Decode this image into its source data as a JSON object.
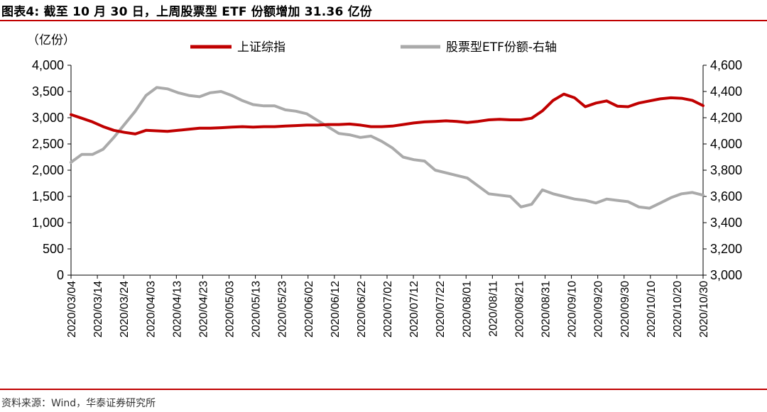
{
  "header": {
    "title": "图表4:  截至 10 月 30 日，上周股票型 ETF 份额增加 31.36 亿份"
  },
  "footer": {
    "source": "资料来源：Wind，华泰证券研究所"
  },
  "colors": {
    "accent_red": "#c00000",
    "series_red": "#c00000",
    "series_gray": "#aaaaaa",
    "axis": "#000000"
  },
  "chart_data": {
    "type": "line",
    "title": "截至 10 月 30 日，上周股票型 ETF 份额增加 31.36 亿份",
    "left_unit_label": "（亿份）",
    "legend_position": "top",
    "grid": false,
    "y_left": {
      "min": 0,
      "max": 4000,
      "step": 500,
      "ticks": [
        "0",
        "500",
        "1,000",
        "1,500",
        "2,000",
        "2,500",
        "3,000",
        "3,500",
        "4,000"
      ]
    },
    "y_right": {
      "min": 3000,
      "max": 4600,
      "step": 200,
      "ticks": [
        "3,000",
        "3,200",
        "3,400",
        "3,600",
        "3,800",
        "4,000",
        "4,200",
        "4,400",
        "4,600"
      ]
    },
    "x_labels": [
      "2020/03/04",
      "2020/03/14",
      "2020/03/24",
      "2020/04/03",
      "2020/04/13",
      "2020/04/23",
      "2020/05/03",
      "2020/05/13",
      "2020/05/23",
      "2020/06/02",
      "2020/06/12",
      "2020/06/22",
      "2020/07/02",
      "2020/07/12",
      "2020/07/22",
      "2020/08/01",
      "2020/08/11",
      "2020/08/21",
      "2020/08/31",
      "2020/09/10",
      "2020/09/20",
      "2020/09/30",
      "2020/10/10",
      "2020/10/20",
      "2020/10/30"
    ],
    "series": [
      {
        "name": "上证综指",
        "axis": "left",
        "color": "#c00000",
        "values": [
          3060,
          2990,
          2920,
          2830,
          2760,
          2720,
          2690,
          2760,
          2750,
          2740,
          2760,
          2780,
          2800,
          2800,
          2810,
          2820,
          2830,
          2820,
          2830,
          2830,
          2840,
          2850,
          2860,
          2860,
          2870,
          2870,
          2880,
          2860,
          2830,
          2830,
          2840,
          2870,
          2900,
          2920,
          2930,
          2940,
          2930,
          2910,
          2930,
          2960,
          2970,
          2960,
          2960,
          2990,
          3130,
          3330,
          3450,
          3380,
          3210,
          3280,
          3320,
          3220,
          3210,
          3280,
          3320,
          3360,
          3380,
          3370,
          3330,
          3230
        ]
      },
      {
        "name": "股票型ETF份额-右轴",
        "axis": "right",
        "color": "#aaaaaa",
        "values": [
          3860,
          3920,
          3920,
          3960,
          4050,
          4150,
          4250,
          4370,
          4430,
          4420,
          4390,
          4370,
          4360,
          4390,
          4400,
          4370,
          4330,
          4300,
          4290,
          4290,
          4260,
          4250,
          4230,
          4180,
          4130,
          4080,
          4070,
          4050,
          4060,
          4020,
          3970,
          3900,
          3880,
          3870,
          3800,
          3780,
          3760,
          3740,
          3680,
          3620,
          3610,
          3600,
          3520,
          3540,
          3650,
          3620,
          3600,
          3580,
          3570,
          3550,
          3580,
          3570,
          3560,
          3520,
          3510,
          3550,
          3590,
          3620,
          3630,
          3610
        ]
      }
    ]
  }
}
